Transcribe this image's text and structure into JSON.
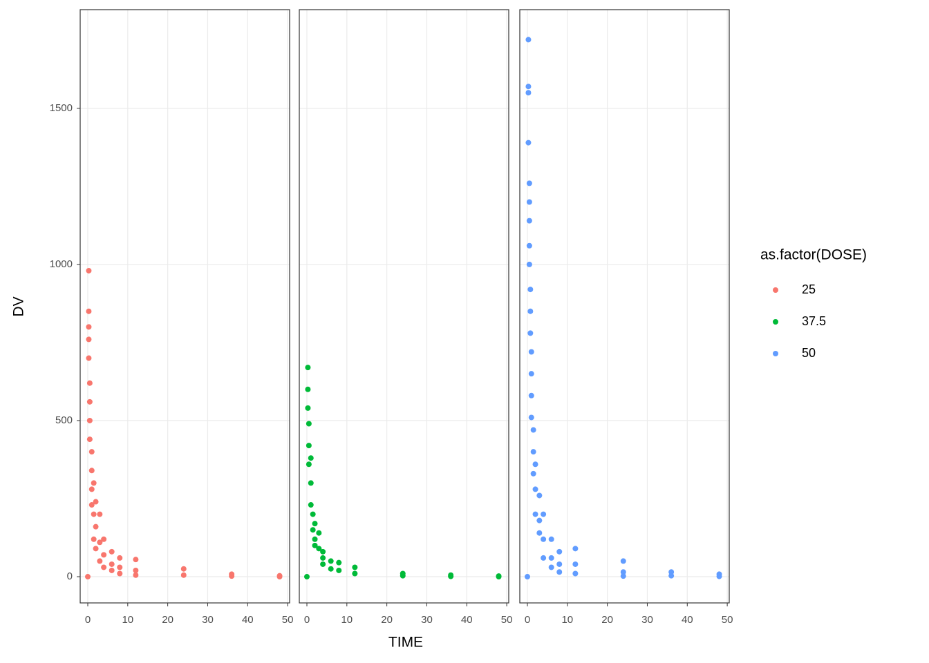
{
  "chart_data": [
    {
      "type": "scatter",
      "ylabel": "DV",
      "xlim": [
        -1.9,
        50.5
      ],
      "ylim": [
        -84,
        1816
      ],
      "xticks": [
        0,
        10,
        20,
        30,
        40,
        50
      ],
      "yticks": [
        0,
        500,
        1000,
        1500
      ],
      "grid": true,
      "series": [
        {
          "name": "25",
          "color": "#F8766D",
          "x": [
            0,
            0.25,
            0.25,
            0.25,
            0.25,
            0.25,
            0.5,
            0.5,
            0.5,
            0.5,
            1,
            1,
            1,
            1,
            1.5,
            1.5,
            1.5,
            2,
            2,
            2,
            3,
            3,
            3,
            4,
            4,
            4,
            6,
            6,
            6,
            8,
            8,
            8,
            12,
            12,
            12,
            24,
            24,
            36,
            36,
            48,
            48
          ],
          "values": [
            0,
            980,
            850,
            800,
            760,
            700,
            620,
            560,
            500,
            440,
            400,
            340,
            280,
            230,
            300,
            200,
            120,
            240,
            160,
            90,
            200,
            110,
            50,
            120,
            70,
            30,
            80,
            40,
            20,
            60,
            30,
            10,
            55,
            20,
            5,
            25,
            5,
            8,
            2,
            3,
            0
          ]
        }
      ]
    },
    {
      "type": "scatter",
      "xlabel": "TIME",
      "xlim": [
        -1.9,
        50.5
      ],
      "ylim": [
        -84,
        1816
      ],
      "xticks": [
        0,
        10,
        20,
        30,
        40,
        50
      ],
      "yticks": [
        0,
        500,
        1000,
        1500
      ],
      "grid": true,
      "series": [
        {
          "name": "37.5",
          "color": "#00BA38",
          "x": [
            0,
            0.25,
            0.25,
            0.25,
            0.5,
            0.5,
            0.5,
            1,
            1,
            1,
            1.5,
            1.5,
            2,
            2,
            2,
            3,
            3,
            4,
            4,
            4,
            6,
            6,
            8,
            8,
            12,
            12,
            24,
            24,
            36,
            36,
            48,
            48
          ],
          "values": [
            0,
            670,
            600,
            540,
            490,
            420,
            360,
            380,
            300,
            230,
            200,
            150,
            170,
            120,
            100,
            140,
            90,
            80,
            60,
            40,
            50,
            25,
            45,
            20,
            30,
            10,
            10,
            3,
            5,
            1,
            2,
            0
          ]
        }
      ]
    },
    {
      "type": "scatter",
      "legend_title": "as.factor(DOSE)",
      "xlim": [
        -1.9,
        50.5
      ],
      "ylim": [
        -84,
        1816
      ],
      "xticks": [
        0,
        10,
        20,
        30,
        40,
        50
      ],
      "yticks": [
        0,
        500,
        1000,
        1500
      ],
      "grid": true,
      "series": [
        {
          "name": "50",
          "color": "#619CFF",
          "x": [
            0,
            0.25,
            0.25,
            0.25,
            0.25,
            0.5,
            0.5,
            0.5,
            0.5,
            0.5,
            0.75,
            0.75,
            0.75,
            1,
            1,
            1,
            1,
            1.5,
            1.5,
            1.5,
            2,
            2,
            2,
            3,
            3,
            3,
            4,
            4,
            4,
            6,
            6,
            6,
            8,
            8,
            8,
            12,
            12,
            12,
            24,
            24,
            24,
            36,
            36,
            48,
            48
          ],
          "values": [
            0,
            1720,
            1570,
            1550,
            1390,
            1260,
            1200,
            1140,
            1060,
            1000,
            920,
            850,
            780,
            720,
            650,
            580,
            510,
            470,
            400,
            330,
            360,
            280,
            200,
            260,
            180,
            140,
            200,
            120,
            60,
            120,
            60,
            30,
            80,
            40,
            15,
            90,
            40,
            10,
            50,
            15,
            2,
            15,
            3,
            8,
            1
          ]
        }
      ]
    }
  ]
}
